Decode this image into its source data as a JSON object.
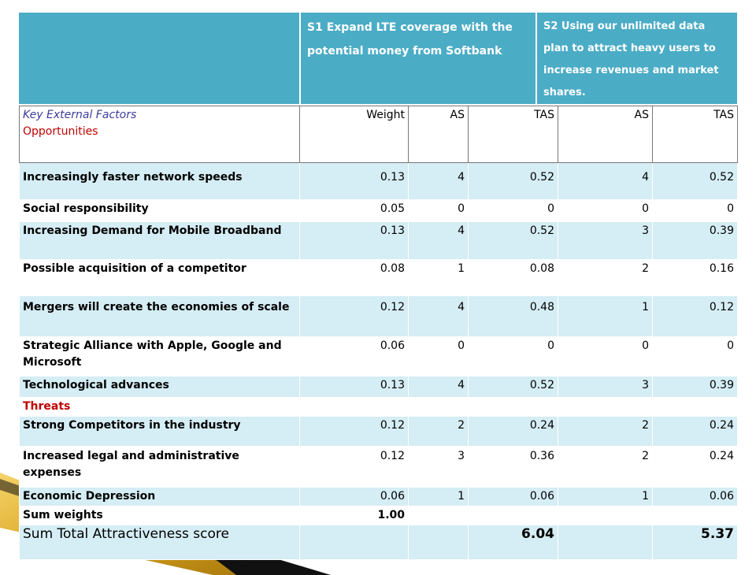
{
  "header": {
    "s1": "S1   Expand LTE coverage with the potential money from Softbank",
    "s2": "S2  Using our unlimited data plan to attract heavy users to increase revenues and market shares."
  },
  "columns": {
    "factor_title": "Key External Factors",
    "opportunities": "Opportunities",
    "weight": "Weight",
    "s1_as": "AS",
    "s1_tas": "TAS",
    "s2_as": "AS",
    "s2_tas": "TAS"
  },
  "opportunities": [
    {
      "name": "Increasingly faster network speeds",
      "weight": "0.13",
      "s1_as": "4",
      "s1_tas": "0.52",
      "s2_as": "4",
      "s2_tas": "0.52"
    },
    {
      "name": " Social responsibility",
      "weight": "0.05",
      "s1_as": "0",
      "s1_tas": "0",
      "s2_as": "0",
      "s2_tas": "0"
    },
    {
      "name": "Increasing Demand for Mobile Broadband",
      "weight": "0.13",
      "s1_as": "4",
      "s1_tas": "0.52",
      "s2_as": "3",
      "s2_tas": "0.39"
    },
    {
      "name": "Possible acquisition of a competitor",
      "weight": "0.08",
      "s1_as": "1",
      "s1_tas": "0.08",
      "s2_as": "2",
      "s2_tas": "0.16"
    },
    {
      "name": "Mergers will create the economies of scale",
      "weight": "0.12",
      "s1_as": "4",
      "s1_tas": "0.48",
      "s2_as": "1",
      "s2_tas": "0.12"
    },
    {
      "name": "Strategic Alliance with Apple, Google and Microsoft",
      "weight": "0.06",
      "s1_as": "0",
      "s1_tas": "0",
      "s2_as": "0",
      "s2_tas": "0"
    },
    {
      "name": "Technological advances",
      "weight": "0.13",
      "s1_as": "4",
      "s1_tas": "0.52",
      "s2_as": "3",
      "s2_tas": "0.39"
    }
  ],
  "threats_label": "Threats",
  "threats": [
    {
      "name": "Strong Competitors in the industry",
      "weight": "0.12",
      "s1_as": "2",
      "s1_tas": "0.24",
      "s2_as": "2",
      "s2_tas": "0.24"
    },
    {
      "name": "Increased legal and administrative expenses",
      "weight": "0.12",
      "s1_as": "3",
      "s1_tas": "0.36",
      "s2_as": "2",
      "s2_tas": "0.24"
    },
    {
      "name": "Economic Depression",
      "weight": "0.06",
      "s1_as": "1",
      "s1_tas": "0.06",
      "s2_as": "1",
      "s2_tas": "0.06"
    }
  ],
  "sum_weights": {
    "label": "Sum weights",
    "value": "1.00"
  },
  "total": {
    "label": "Sum Total Attractiveness score",
    "s1_tas": "6.04",
    "s2_tas": "5.37"
  },
  "colors": {
    "header_bg": "#4bacc6",
    "row_alt": "#d5edf4",
    "accent_red": "#c00000",
    "arrow_gold": "#d9a520"
  }
}
